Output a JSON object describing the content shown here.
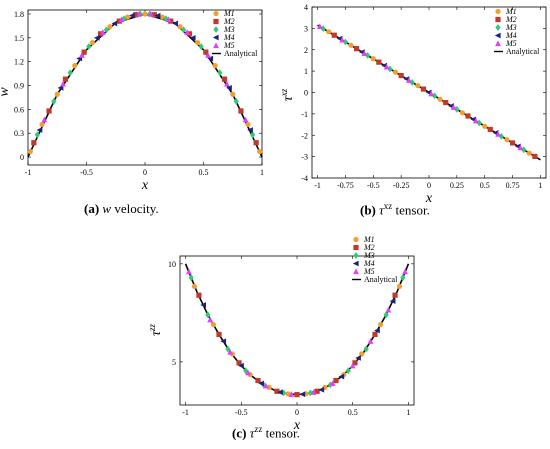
{
  "captions": [
    {
      "label": "(a)",
      "var": "w",
      "rest": " velocity."
    },
    {
      "label": "(b)",
      "var": "τ",
      "sup": "xz",
      "rest": " tensor."
    },
    {
      "label": "(c)",
      "var": "τ",
      "sup": "zz",
      "rest": " tensor."
    }
  ],
  "legend": {
    "series": [
      "M1",
      "M2",
      "M3",
      "M4",
      "M5"
    ],
    "analytical": "Analytical",
    "colors": [
      "#f0a030",
      "#c0392b",
      "#2ecc71",
      "#1a237e",
      "#e040fb"
    ],
    "shapes": [
      "circle",
      "square",
      "diamond",
      "triangle-left",
      "triangle-up"
    ]
  },
  "chart_data": [
    {
      "type": "line",
      "xlabel": "x",
      "ylabel": "w",
      "xlim": [
        -1,
        1
      ],
      "ylim": [
        -0.1,
        1.85
      ],
      "xticks": [
        -1,
        -0.5,
        0,
        0.5,
        1
      ],
      "xtick_labels": [
        "-1",
        "-0.5",
        "0",
        "0.5",
        "1"
      ],
      "yticks": [
        0,
        0.3,
        0.6,
        0.9,
        1.2,
        1.5,
        1.8
      ],
      "ytick_labels": [
        "0",
        "0.3",
        "0.6",
        "0.9",
        "1.2",
        "1.5",
        "1.8"
      ],
      "analytical": {
        "x": [
          -1,
          -0.75,
          -0.5,
          -0.25,
          0,
          0.25,
          0.5,
          0.75,
          1
        ],
        "y": [
          0,
          0.79,
          1.35,
          1.69,
          1.8,
          1.69,
          1.35,
          0.79,
          0
        ]
      },
      "series": [
        {
          "name": "M1",
          "x": [
            -0.98,
            -0.88,
            -0.75,
            -0.6,
            -0.45,
            -0.3,
            -0.15,
            0,
            0.15,
            0.3,
            0.45,
            0.6,
            0.75,
            0.88,
            0.98
          ],
          "y": [
            0.07,
            0.41,
            0.79,
            1.15,
            1.44,
            1.64,
            1.76,
            1.8,
            1.76,
            1.64,
            1.44,
            1.15,
            0.79,
            0.41,
            0.07
          ]
        },
        {
          "name": "M2",
          "x": [
            -0.95,
            -0.82,
            -0.68,
            -0.52,
            -0.38,
            -0.22,
            -0.08,
            0.08,
            0.22,
            0.38,
            0.52,
            0.68,
            0.82,
            0.95
          ],
          "y": [
            0.18,
            0.58,
            0.98,
            1.32,
            1.55,
            1.71,
            1.79,
            1.79,
            1.71,
            1.55,
            1.32,
            0.98,
            0.58,
            0.18
          ]
        },
        {
          "name": "M3",
          "x": [
            -0.92,
            -0.78,
            -0.64,
            -0.48,
            -0.33,
            -0.18,
            -0.04,
            0.04,
            0.18,
            0.33,
            0.48,
            0.64,
            0.78,
            0.92
          ],
          "y": [
            0.28,
            0.7,
            1.06,
            1.39,
            1.6,
            1.74,
            1.8,
            1.8,
            1.74,
            1.6,
            1.39,
            1.06,
            0.7,
            0.28
          ]
        },
        {
          "name": "M4",
          "x": [
            -0.9,
            -0.72,
            -0.56,
            -0.41,
            -0.26,
            -0.11,
            0.11,
            0.26,
            0.41,
            0.56,
            0.72,
            0.9
          ],
          "y": [
            0.34,
            0.87,
            1.24,
            1.5,
            1.68,
            1.78,
            1.78,
            1.68,
            1.5,
            1.24,
            0.87,
            0.34
          ]
        },
        {
          "name": "M5",
          "x": [
            -0.86,
            -0.7,
            -0.54,
            -0.36,
            -0.2,
            -0.05,
            0.05,
            0.2,
            0.36,
            0.54,
            0.7,
            0.86
          ],
          "y": [
            0.47,
            0.92,
            1.28,
            1.57,
            1.73,
            1.8,
            1.8,
            1.73,
            1.57,
            1.28,
            0.92,
            0.47
          ]
        }
      ]
    },
    {
      "type": "line",
      "xlabel": "x",
      "ylabel": "τ^xz",
      "xlim": [
        -1.05,
        1.05
      ],
      "ylim": [
        -4,
        4
      ],
      "xticks": [
        -1,
        -0.75,
        -0.5,
        -0.25,
        0,
        0.25,
        0.5,
        0.75,
        1
      ],
      "xtick_labels": [
        "-1",
        "-0.75",
        "-0.5",
        "-0.25",
        "0",
        "0.25",
        "0.5",
        "0.75",
        "1"
      ],
      "yticks": [
        -4,
        -3,
        -2,
        -1,
        0,
        1,
        2,
        3,
        4
      ],
      "ytick_labels": [
        "-4",
        "-3",
        "-2",
        "-1",
        "0",
        "1",
        "2",
        "3",
        "4"
      ],
      "analytical": {
        "x": [
          -1,
          1
        ],
        "y": [
          3.15,
          -3.15
        ]
      },
      "series": [
        {
          "name": "M1",
          "x": [
            -0.9,
            -0.7,
            -0.5,
            -0.3,
            -0.1,
            0.1,
            0.3,
            0.5,
            0.7,
            0.9
          ],
          "y": [
            2.84,
            2.21,
            1.58,
            0.95,
            0.32,
            -0.32,
            -0.95,
            -1.58,
            -2.21,
            -2.84
          ]
        },
        {
          "name": "M2",
          "x": [
            -0.85,
            -0.65,
            -0.45,
            -0.25,
            -0.05,
            0.15,
            0.35,
            0.55,
            0.75,
            0.95
          ],
          "y": [
            2.68,
            2.05,
            1.42,
            0.79,
            0.16,
            -0.47,
            -1.1,
            -1.73,
            -2.36,
            -2.99
          ]
        },
        {
          "name": "M3",
          "x": [
            -0.95,
            -0.75,
            -0.55,
            -0.35,
            -0.15,
            0.05,
            0.25,
            0.45,
            0.65,
            0.85
          ],
          "y": [
            2.99,
            2.36,
            1.73,
            1.1,
            0.47,
            -0.16,
            -0.79,
            -1.42,
            -2.05,
            -2.68
          ]
        },
        {
          "name": "M4",
          "x": [
            -0.8,
            -0.6,
            -0.4,
            -0.2,
            0,
            0.2,
            0.4,
            0.6,
            0.8
          ],
          "y": [
            2.52,
            1.89,
            1.26,
            0.63,
            0,
            -0.63,
            -1.26,
            -1.89,
            -2.52
          ]
        },
        {
          "name": "M5",
          "x": [
            -0.98,
            -0.78,
            -0.58,
            -0.38,
            -0.18,
            0.02,
            0.22,
            0.42,
            0.62,
            0.82
          ],
          "y": [
            3.09,
            2.46,
            1.83,
            1.2,
            0.57,
            -0.06,
            -0.69,
            -1.32,
            -1.95,
            -2.58
          ]
        }
      ]
    },
    {
      "type": "line",
      "xlabel": "x",
      "ylabel": "τ^zz",
      "xlim": [
        -1.05,
        1.05
      ],
      "ylim": [
        2.8,
        10.4
      ],
      "xticks": [
        -1,
        -0.5,
        0,
        0.5,
        1
      ],
      "xtick_labels": [
        "-1",
        "-0.5",
        "0",
        "0.5",
        "1"
      ],
      "yticks": [
        5,
        10
      ],
      "ytick_labels": [
        "5",
        "10"
      ],
      "analytical": {
        "x": [
          -1,
          -0.9,
          -0.8,
          -0.7,
          -0.6,
          -0.5,
          -0.4,
          -0.3,
          -0.2,
          -0.1,
          0,
          0.1,
          0.2,
          0.3,
          0.4,
          0.5,
          0.6,
          0.7,
          0.8,
          0.9,
          1
        ],
        "y": [
          10,
          8.6,
          7.4,
          6.4,
          5.5,
          4.8,
          4.25,
          3.83,
          3.55,
          3.39,
          3.33,
          3.39,
          3.55,
          3.83,
          4.25,
          4.8,
          5.5,
          6.4,
          7.4,
          8.6,
          10
        ]
      },
      "series": [
        {
          "name": "M1",
          "x": [
            -0.92,
            -0.75,
            -0.58,
            -0.42,
            -0.25,
            -0.08,
            0.08,
            0.25,
            0.42,
            0.58,
            0.75,
            0.92
          ],
          "y": [
            8.85,
            6.9,
            5.4,
            4.35,
            3.7,
            3.37,
            3.37,
            3.7,
            4.35,
            5.4,
            6.9,
            8.85
          ]
        },
        {
          "name": "M2",
          "x": [
            -0.88,
            -0.7,
            -0.52,
            -0.35,
            -0.18,
            0,
            0.18,
            0.35,
            0.52,
            0.7,
            0.88
          ],
          "y": [
            8.4,
            6.4,
            4.95,
            4.05,
            3.5,
            3.33,
            3.5,
            4.05,
            4.95,
            6.4,
            8.4
          ]
        },
        {
          "name": "M3",
          "x": [
            -0.95,
            -0.8,
            -0.62,
            -0.46,
            -0.3,
            -0.12,
            0.12,
            0.3,
            0.46,
            0.62,
            0.8,
            0.95
          ],
          "y": [
            9.3,
            7.4,
            5.65,
            4.55,
            3.83,
            3.42,
            3.42,
            3.83,
            4.55,
            5.65,
            7.4,
            9.3
          ]
        },
        {
          "name": "M4",
          "x": [
            -0.84,
            -0.66,
            -0.5,
            -0.32,
            -0.15,
            0.05,
            0.22,
            0.4,
            0.55,
            0.72,
            0.86
          ],
          "y": [
            7.9,
            6.05,
            4.8,
            3.9,
            3.45,
            3.35,
            3.58,
            4.25,
            5.2,
            6.6,
            8.1
          ]
        },
        {
          "name": "M5",
          "x": [
            -0.97,
            -0.78,
            -0.6,
            -0.44,
            -0.28,
            -0.05,
            0.15,
            0.32,
            0.5,
            0.66,
            0.82,
            0.97
          ],
          "y": [
            9.6,
            7.15,
            5.5,
            4.45,
            3.78,
            3.35,
            3.45,
            3.9,
            4.8,
            6.05,
            7.65,
            9.6
          ]
        }
      ]
    }
  ]
}
